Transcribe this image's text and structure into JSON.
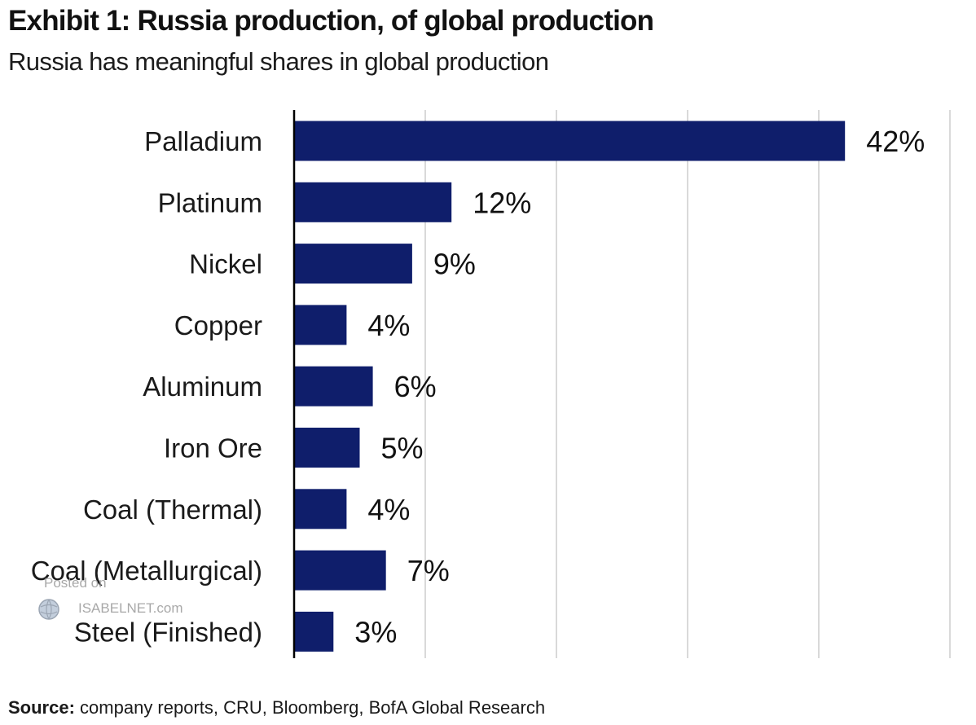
{
  "header": {
    "title": "Exhibit 1: Russia production, of global production",
    "subtitle": "Russia has meaningful shares in global production"
  },
  "chart_data": {
    "type": "bar",
    "orientation": "horizontal",
    "categories": [
      "Palladium",
      "Platinum",
      "Nickel",
      "Copper",
      "Aluminum",
      "Iron Ore",
      "Coal (Thermal)",
      "Coal (Metallurgical)",
      "Steel (Finished)"
    ],
    "values": [
      42,
      12,
      9,
      4,
      6,
      5,
      4,
      7,
      3
    ],
    "data_labels": [
      "42%",
      "12%",
      "9%",
      "4%",
      "6%",
      "5%",
      "4%",
      "7%",
      "3%"
    ],
    "xlim": [
      0,
      50
    ],
    "x_gridlines": [
      10,
      20,
      30,
      40,
      50
    ],
    "grid": true,
    "legend": "none",
    "colors": {
      "bar": "#0f1e6b",
      "grid": "#d9d9d9",
      "axis": "#000000"
    }
  },
  "watermark": {
    "line1": "Posted on",
    "line2": "ISABELNET.com"
  },
  "footer": {
    "source_label": "Source:",
    "source_text": "company reports, CRU, Bloomberg, BofA Global Research"
  }
}
